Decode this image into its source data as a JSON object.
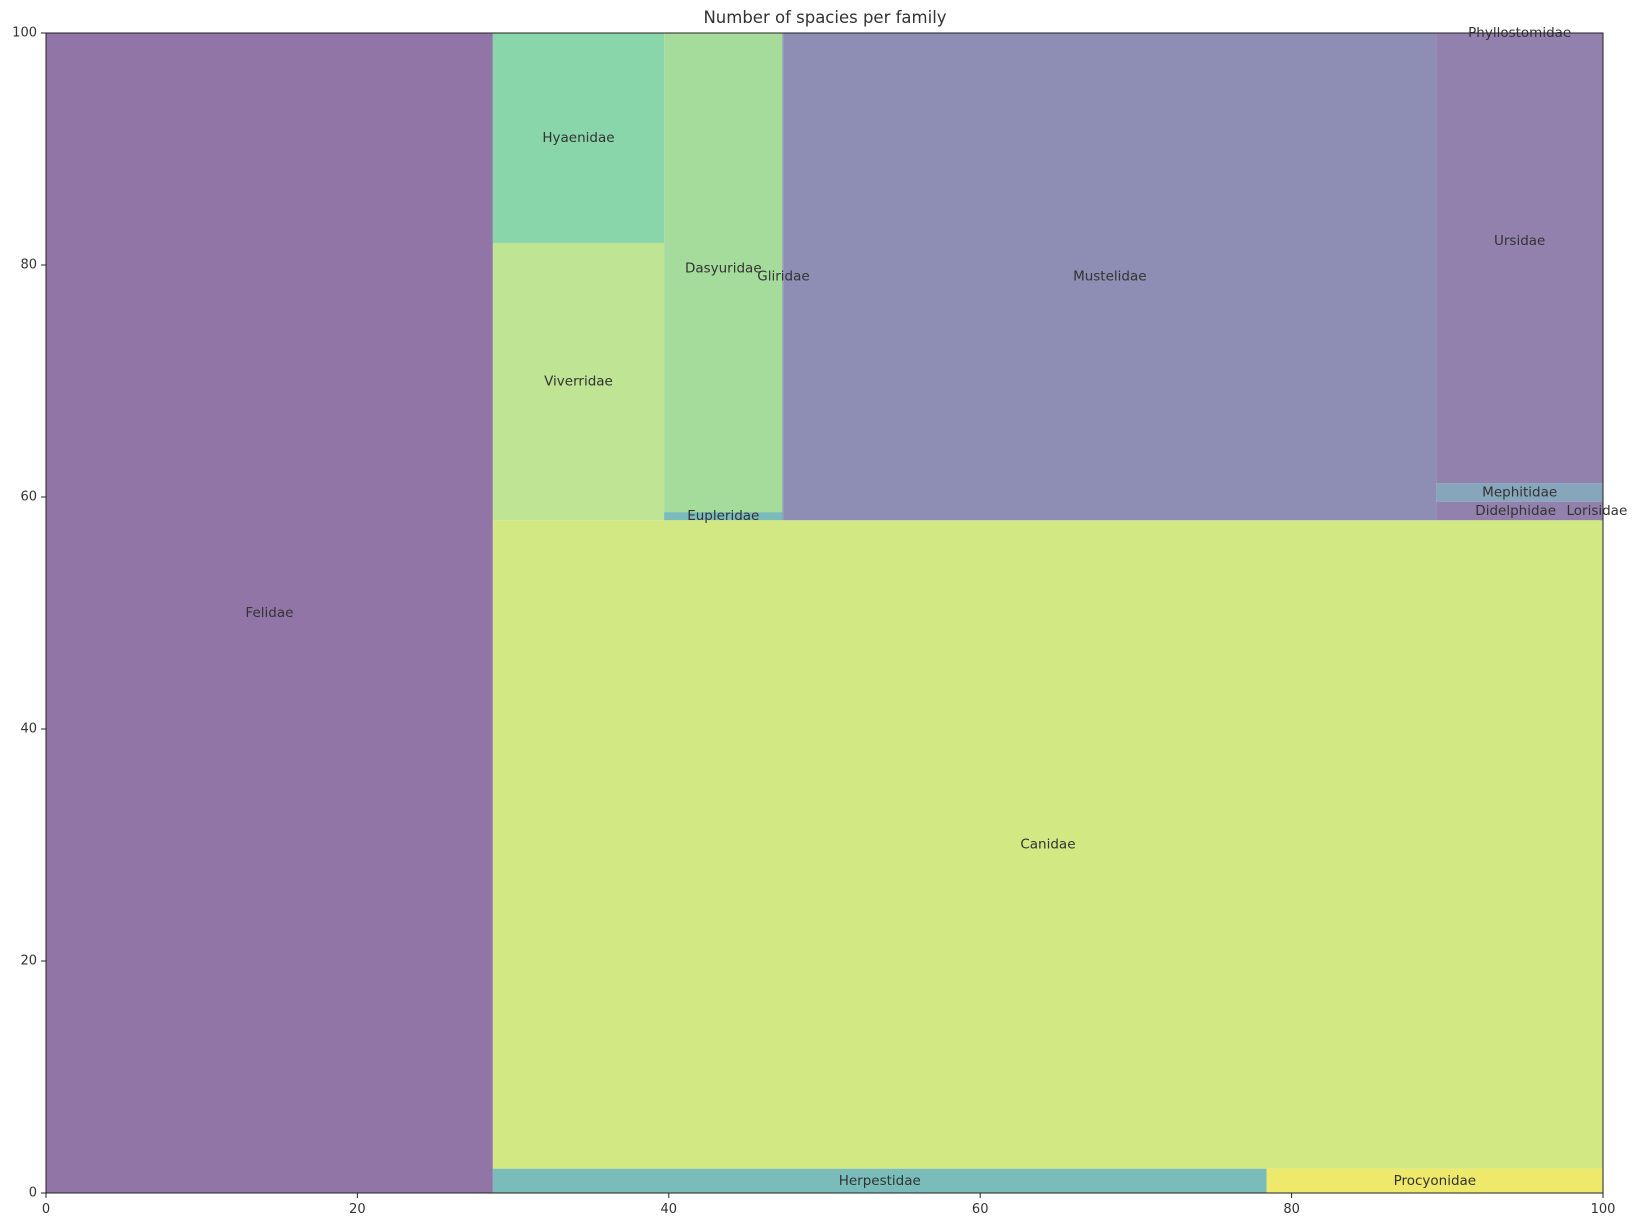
{
  "chart_data": {
    "type": "treemap",
    "title": "Number of spacies per family",
    "xlim": [
      0,
      100
    ],
    "ylim": [
      0,
      100
    ],
    "x_ticks": [
      0,
      20,
      40,
      60,
      80,
      100
    ],
    "y_ticks": [
      0,
      20,
      40,
      60,
      80,
      100
    ],
    "grid": false,
    "legend": "none",
    "rects": [
      {
        "label": "Felidae",
        "x0": 0,
        "x1": 28.7,
        "y0": 0,
        "y1": 100,
        "color": "#9075a6"
      },
      {
        "label": "Herpestidae",
        "x0": 28.7,
        "x1": 78.4,
        "y0": 0,
        "y1": 2.1,
        "color": "#79bcba"
      },
      {
        "label": "Procyonidae",
        "x0": 78.4,
        "x1": 100,
        "y0": 0,
        "y1": 2.1,
        "color": "#efe96b"
      },
      {
        "label": "Canidae",
        "x0": 28.7,
        "x1": 100,
        "y0": 2.1,
        "y1": 58.0,
        "color": "#d2e983"
      },
      {
        "label": "Viverridae",
        "x0": 28.7,
        "x1": 39.7,
        "y0": 58.0,
        "y1": 81.9,
        "color": "#bfe493"
      },
      {
        "label": "Hyaenidae",
        "x0": 28.7,
        "x1": 39.7,
        "y0": 81.9,
        "y1": 100,
        "color": "#89d6aa"
      },
      {
        "label": "Eupleridae",
        "x0": 39.7,
        "x1": 47.3,
        "y0": 58.0,
        "y1": 58.7,
        "color": "#79bcba"
      },
      {
        "label": "Dasyuridae",
        "x0": 39.7,
        "x1": 47.3,
        "y0": 58.7,
        "y1": 100,
        "color": "#a5dc9c"
      },
      {
        "label": "Gliridae",
        "x0": 47.3,
        "x1": 47.35,
        "y0": 58.0,
        "y1": 100,
        "color": "#8e8db4"
      },
      {
        "label": "Mustelidae",
        "x0": 47.35,
        "x1": 89.3,
        "y0": 58.0,
        "y1": 100,
        "color": "#8e8db4"
      },
      {
        "label": "Didelphidae",
        "x0": 89.3,
        "x1": 100,
        "y0": 58.0,
        "y1": 59.6,
        "color": "#9381ad"
      },
      {
        "label": "Lorisidae",
        "x0": 99.8,
        "x1": 100,
        "y0": 58.0,
        "y1": 59.6,
        "color": "#9381ad"
      },
      {
        "label": "Mephitidae",
        "x0": 89.3,
        "x1": 100,
        "y0": 59.6,
        "y1": 61.2,
        "color": "#87a6bb"
      },
      {
        "label": "Ursidae",
        "x0": 89.3,
        "x1": 100,
        "y0": 61.2,
        "y1": 100,
        "color": "#9381ad"
      },
      {
        "label": "Phyllostomidae",
        "x0": 89.3,
        "x1": 100,
        "y0": 99.9,
        "y1": 100,
        "color": "#9381ad"
      }
    ]
  }
}
